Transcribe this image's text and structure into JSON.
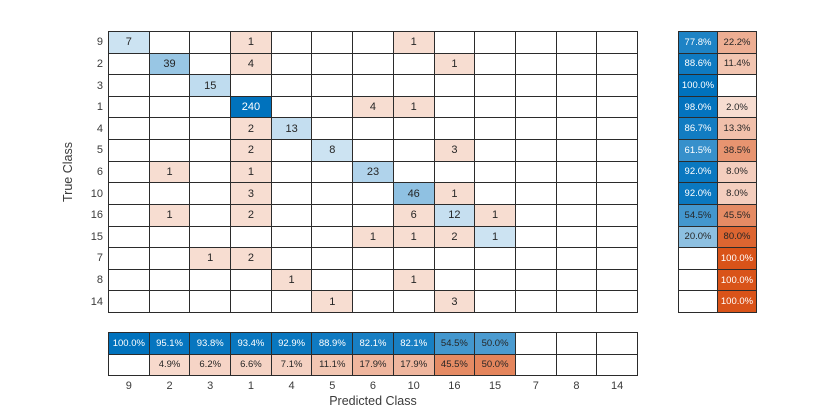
{
  "chart_data": {
    "type": "heatmap",
    "subtype": "confusion-matrix",
    "xlabel": "Predicted Class",
    "ylabel": "True Class",
    "classes": [
      "9",
      "2",
      "3",
      "1",
      "4",
      "5",
      "6",
      "10",
      "16",
      "15",
      "7",
      "8",
      "14"
    ],
    "matrix": [
      [
        7,
        0,
        0,
        1,
        0,
        0,
        0,
        1,
        0,
        0,
        0,
        0,
        0
      ],
      [
        0,
        39,
        0,
        4,
        0,
        0,
        0,
        0,
        1,
        0,
        0,
        0,
        0
      ],
      [
        0,
        0,
        15,
        0,
        0,
        0,
        0,
        0,
        0,
        0,
        0,
        0,
        0
      ],
      [
        0,
        0,
        0,
        240,
        0,
        0,
        4,
        1,
        0,
        0,
        0,
        0,
        0
      ],
      [
        0,
        0,
        0,
        2,
        13,
        0,
        0,
        0,
        0,
        0,
        0,
        0,
        0
      ],
      [
        0,
        0,
        0,
        2,
        0,
        8,
        0,
        0,
        3,
        0,
        0,
        0,
        0
      ],
      [
        0,
        1,
        0,
        1,
        0,
        0,
        23,
        0,
        0,
        0,
        0,
        0,
        0
      ],
      [
        0,
        0,
        0,
        3,
        0,
        0,
        0,
        46,
        1,
        0,
        0,
        0,
        0
      ],
      [
        0,
        1,
        0,
        2,
        0,
        0,
        0,
        6,
        12,
        1,
        0,
        0,
        0
      ],
      [
        0,
        0,
        0,
        0,
        0,
        0,
        1,
        1,
        2,
        1,
        0,
        0,
        0
      ],
      [
        0,
        0,
        1,
        2,
        0,
        0,
        0,
        0,
        0,
        0,
        0,
        0,
        0
      ],
      [
        0,
        0,
        0,
        0,
        1,
        0,
        0,
        1,
        0,
        0,
        0,
        0,
        0
      ],
      [
        0,
        0,
        0,
        0,
        0,
        1,
        0,
        0,
        3,
        0,
        0,
        0,
        0
      ]
    ],
    "row_summary": {
      "correct": [
        "77.8%",
        "88.6%",
        "100.0%",
        "98.0%",
        "86.7%",
        "61.5%",
        "92.0%",
        "92.0%",
        "54.5%",
        "20.0%",
        "",
        "",
        ""
      ],
      "incorrect": [
        "22.2%",
        "11.4%",
        "",
        "2.0%",
        "13.3%",
        "38.5%",
        "8.0%",
        "8.0%",
        "45.5%",
        "80.0%",
        "100.0%",
        "100.0%",
        "100.0%"
      ]
    },
    "col_summary": {
      "correct": [
        "100.0%",
        "95.1%",
        "93.8%",
        "93.4%",
        "92.9%",
        "88.9%",
        "82.1%",
        "82.1%",
        "54.5%",
        "50.0%",
        "",
        "",
        ""
      ],
      "incorrect": [
        "",
        "4.9%",
        "6.2%",
        "6.6%",
        "7.1%",
        "11.1%",
        "17.9%",
        "17.9%",
        "45.5%",
        "50.0%",
        "",
        "",
        ""
      ]
    },
    "layout": {
      "row_summary_position": "right",
      "col_summary_position": "bottom",
      "grid": "on",
      "legend": "none"
    },
    "colors": {
      "diagonal": "#0072BD",
      "off_diagonal": "#D95319",
      "grid_line": "#2b2b2b",
      "text_dark": "#262626",
      "text_light": "#ffffff",
      "background": "#ffffff"
    }
  }
}
